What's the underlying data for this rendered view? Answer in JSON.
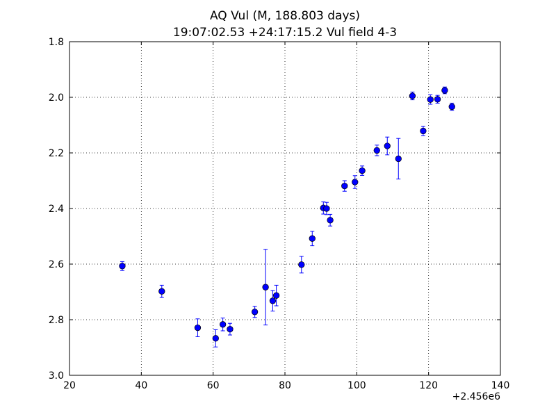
{
  "chart_data": {
    "type": "scatter",
    "title": "AQ Vul (M, 188.803 days)",
    "subtitle": "19:07:02.53 +24:17:15.2 Vul field 4-3",
    "xlabel": "",
    "ylabel": "",
    "x_offset_label": "+2.456e6",
    "xlim": [
      20,
      140
    ],
    "ylim": [
      1.8,
      3.0
    ],
    "y_inverted": true,
    "grid": true,
    "grid_style": "dotted",
    "x_ticks": [
      20,
      40,
      60,
      80,
      100,
      120,
      140
    ],
    "x_tick_labels": [
      "20",
      "40",
      "60",
      "80",
      "100",
      "120",
      "140"
    ],
    "y_ticks": [
      1.8,
      2.0,
      2.2,
      2.4,
      2.6,
      2.8,
      3.0
    ],
    "y_tick_labels": [
      "1.8",
      "2.0",
      "2.2",
      "2.4",
      "2.6",
      "2.8",
      "3.0"
    ],
    "marker_color": "#0000ff",
    "points": [
      {
        "x": 34.7,
        "y": 2.607,
        "err": 0.016
      },
      {
        "x": 45.7,
        "y": 2.698,
        "err": 0.022
      },
      {
        "x": 55.7,
        "y": 2.829,
        "err": 0.032
      },
      {
        "x": 60.7,
        "y": 2.867,
        "err": 0.031
      },
      {
        "x": 62.7,
        "y": 2.817,
        "err": 0.023
      },
      {
        "x": 64.7,
        "y": 2.834,
        "err": 0.021
      },
      {
        "x": 71.6,
        "y": 2.772,
        "err": 0.02
      },
      {
        "x": 74.6,
        "y": 2.683,
        "err": 0.136
      },
      {
        "x": 76.6,
        "y": 2.732,
        "err": 0.037
      },
      {
        "x": 77.6,
        "y": 2.713,
        "err": 0.037
      },
      {
        "x": 84.6,
        "y": 2.602,
        "err": 0.03
      },
      {
        "x": 87.6,
        "y": 2.508,
        "err": 0.026
      },
      {
        "x": 90.7,
        "y": 2.398,
        "err": 0.022
      },
      {
        "x": 91.6,
        "y": 2.4,
        "err": 0.022
      },
      {
        "x": 92.6,
        "y": 2.442,
        "err": 0.021
      },
      {
        "x": 96.6,
        "y": 2.319,
        "err": 0.019
      },
      {
        "x": 99.5,
        "y": 2.305,
        "err": 0.023
      },
      {
        "x": 101.5,
        "y": 2.264,
        "err": 0.017
      },
      {
        "x": 105.6,
        "y": 2.191,
        "err": 0.019
      },
      {
        "x": 108.5,
        "y": 2.175,
        "err": 0.032
      },
      {
        "x": 111.6,
        "y": 2.221,
        "err": 0.073
      },
      {
        "x": 115.5,
        "y": 1.995,
        "err": 0.014
      },
      {
        "x": 118.5,
        "y": 2.121,
        "err": 0.017
      },
      {
        "x": 120.5,
        "y": 2.008,
        "err": 0.017
      },
      {
        "x": 122.5,
        "y": 2.007,
        "err": 0.014
      },
      {
        "x": 124.5,
        "y": 1.975,
        "err": 0.012
      },
      {
        "x": 126.5,
        "y": 2.034,
        "err": 0.013
      }
    ]
  }
}
